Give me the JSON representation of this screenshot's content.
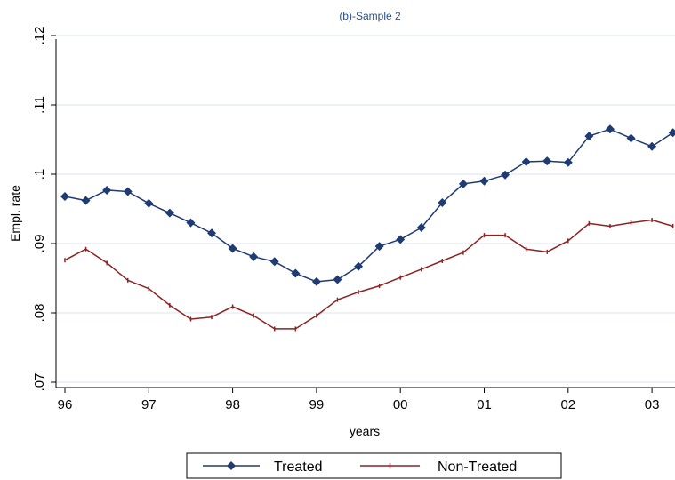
{
  "chart_data": {
    "type": "line",
    "title": "(b)-Sample 2",
    "xlabel": "years",
    "ylabel": "Empl. rate",
    "xlim": [
      1995.93,
      2003.3
    ],
    "ylim": [
      0.069,
      0.12
    ],
    "x_ticks": [
      {
        "value": 1996,
        "label": "96"
      },
      {
        "value": 1997,
        "label": "97"
      },
      {
        "value": 1998,
        "label": "98"
      },
      {
        "value": 1999,
        "label": "99"
      },
      {
        "value": 2000,
        "label": "00"
      },
      {
        "value": 2001,
        "label": "01"
      },
      {
        "value": 2002,
        "label": "02"
      },
      {
        "value": 2003,
        "label": "03"
      }
    ],
    "y_ticks": [
      {
        "value": 0.07,
        "label": ".07"
      },
      {
        "value": 0.08,
        "label": ".08"
      },
      {
        "value": 0.09,
        "label": ".09"
      },
      {
        "value": 0.1,
        "label": ".1"
      },
      {
        "value": 0.11,
        "label": ".11"
      },
      {
        "value": 0.12,
        "label": ".12"
      }
    ],
    "grid": true,
    "legend_position": "bottom",
    "x": [
      1996,
      1996.25,
      1996.5,
      1996.75,
      1997,
      1997.25,
      1997.5,
      1997.75,
      1998,
      1998.25,
      1998.5,
      1998.75,
      1999,
      1999.25,
      1999.5,
      1999.75,
      2000,
      2000.25,
      2000.5,
      2000.75,
      2001,
      2001.25,
      2001.5,
      2001.75,
      2002,
      2002.25,
      2002.5,
      2002.75,
      2003,
      2003.25
    ],
    "series": [
      {
        "name": "Treated",
        "color": "#1f3b73",
        "marker": "diamond",
        "values": [
          0.0968,
          0.0962,
          0.0977,
          0.0975,
          0.0958,
          0.0944,
          0.093,
          0.0915,
          0.0893,
          0.0881,
          0.0874,
          0.0857,
          0.0845,
          0.0848,
          0.0867,
          0.0896,
          0.0906,
          0.0923,
          0.0959,
          0.0986,
          0.099,
          0.0999,
          0.1018,
          0.1019,
          0.1017,
          0.1055,
          0.1065,
          0.1052,
          0.104,
          0.106
        ]
      },
      {
        "name": "Non-Treated",
        "color": "#8b2323",
        "marker": "tick",
        "values": [
          0.0876,
          0.0892,
          0.0872,
          0.0847,
          0.0835,
          0.0811,
          0.0791,
          0.0794,
          0.0809,
          0.0796,
          0.0777,
          0.0777,
          0.0796,
          0.0819,
          0.083,
          0.0839,
          0.0851,
          0.0863,
          0.0875,
          0.0887,
          0.0912,
          0.0912,
          0.0892,
          0.0888,
          0.0904,
          0.0929,
          0.0925,
          0.093,
          0.0934,
          0.0925
        ]
      }
    ]
  }
}
